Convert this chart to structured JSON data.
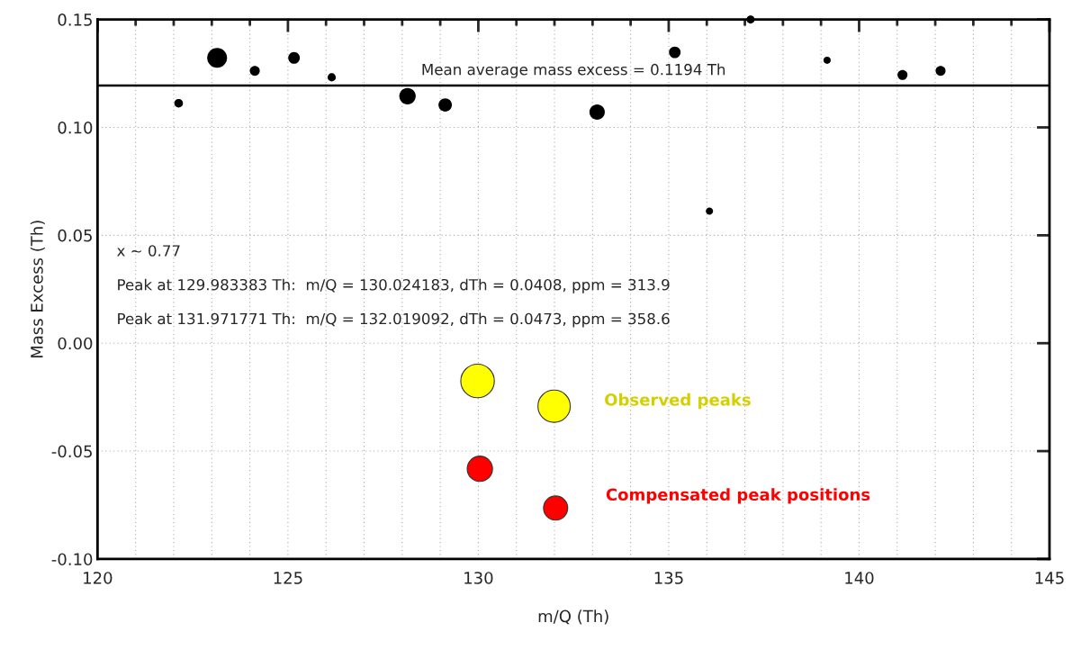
{
  "chart_data": {
    "type": "bubble",
    "xlabel": "m/Q (Th)",
    "ylabel": "Mass Excess (Th)",
    "xlim": [
      120,
      145
    ],
    "xticks": [
      120,
      {
        "value": 121,
        "label": null
      },
      {
        "value": 122,
        "label": null
      },
      {
        "value": 123,
        "label": null
      },
      {
        "value": 124,
        "label": null
      },
      125,
      {
        "value": 126,
        "label": null
      },
      {
        "value": 127,
        "label": null
      },
      {
        "value": 128,
        "label": null
      },
      {
        "value": 129,
        "label": null
      },
      130,
      {
        "value": 131,
        "label": null
      },
      {
        "value": 132,
        "label": null
      },
      {
        "value": 133,
        "label": null
      },
      {
        "value": 134,
        "label": null
      },
      135,
      {
        "value": 136,
        "label": null
      },
      {
        "value": 137,
        "label": null
      },
      {
        "value": 138,
        "label": null
      },
      {
        "value": 139,
        "label": null
      },
      140,
      {
        "value": 141,
        "label": null
      },
      {
        "value": 142,
        "label": null
      },
      {
        "value": 143,
        "label": null
      },
      {
        "value": 144,
        "label": null
      },
      145
    ],
    "ylim": [
      -0.1,
      0.15
    ],
    "yticks": [
      {
        "value": -0.1,
        "label": "-0.10"
      },
      {
        "value": -0.05,
        "label": "-0.05"
      },
      {
        "value": 0.0,
        "label": "0.00"
      },
      {
        "value": 0.05,
        "label": "0.05"
      },
      {
        "value": 0.1,
        "label": "0.10"
      },
      {
        "value": 0.15,
        "label": "0.15"
      }
    ],
    "grid": true,
    "marker": "circle",
    "series": [
      {
        "color": "#000000",
        "x": [
          122.13,
          123.14,
          124.13,
          125.16,
          126.15,
          128.14,
          129.13,
          133.12,
          135.16,
          136.07,
          137.15,
          139.16,
          141.14,
          142.14
        ],
        "values": [
          0.1112,
          0.1322,
          0.1262,
          0.1322,
          0.1232,
          0.1145,
          0.1104,
          0.1071,
          0.1348,
          0.0612,
          0.15,
          0.1311,
          0.1243,
          0.1262
        ],
        "sizes": [
          0.066,
          0.35,
          0.088,
          0.12,
          0.059,
          0.24,
          0.16,
          0.21,
          0.12,
          0.047,
          0.059,
          0.047,
          0.088,
          0.088
        ]
      },
      {
        "name": "Observed peaks",
        "color": "#ffff00",
        "x": [
          129.98,
          131.99
        ],
        "values": [
          -0.0175,
          -0.0292
        ],
        "sizes": [
          1.0,
          0.93
        ]
      },
      {
        "name": "Compensated peak positions",
        "color": "#ff0000",
        "x": [
          130.04,
          132.03
        ],
        "values": [
          -0.0582,
          -0.0764
        ],
        "sizes": [
          0.57,
          0.52
        ]
      }
    ],
    "ref_lines": [
      {
        "axis": "y",
        "value": 0.1194,
        "label": "Mean average mass excess = 0.1194 Th",
        "color": "#000000"
      }
    ],
    "annotations": [
      "x ~ 0.77",
      "Peak at 129.983383 Th:  m/Q = 130.024183, dTh = 0.0408, ppm = 313.9",
      "Peak at 131.971771 Th:  m/Q = 132.019092, dTh = 0.0473, ppm = 358.6"
    ]
  }
}
